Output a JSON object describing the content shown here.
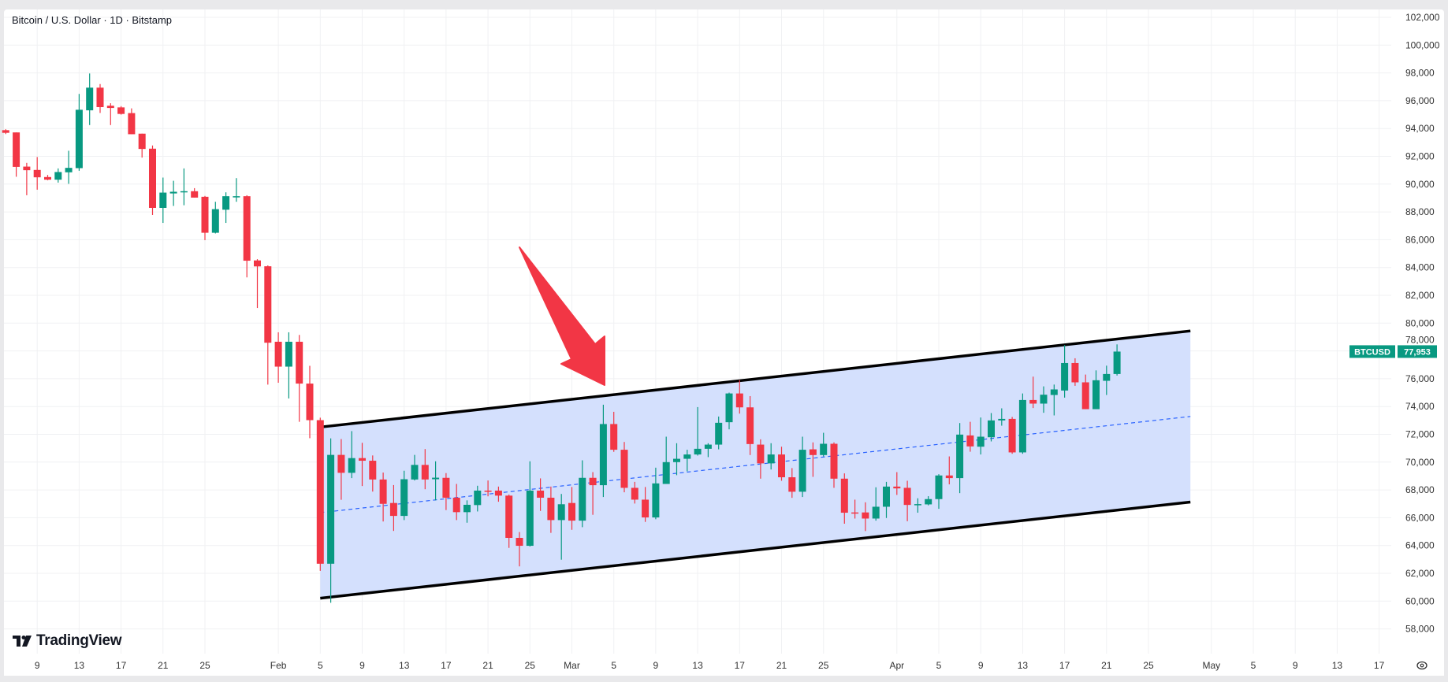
{
  "header": {
    "title": "Bitcoin / U.S. Dollar · 1D · Bitstamp"
  },
  "branding": {
    "logo_text": "TradingView"
  },
  "colors": {
    "up": "#089981",
    "down": "#F23645",
    "channel_fill": "#D2DEFD",
    "channel_line": "#000000",
    "midline": "#2962FF",
    "arrow": "#F23645"
  },
  "price_badge": {
    "symbol": "BTCUSD",
    "price": "77,953",
    "value": 77953
  },
  "chart_data": {
    "type": "candlestick",
    "title": "Bitcoin / U.S. Dollar · 1D · Bitstamp",
    "ylim": [
      57000,
      102500
    ],
    "grid": true,
    "y_ticks": [
      "102,000",
      "100,000",
      "98,000",
      "96,000",
      "94,000",
      "92,000",
      "90,000",
      "88,000",
      "86,000",
      "84,000",
      "82,000",
      "80,000",
      "78,000",
      "76,000",
      "74,000",
      "72,000",
      "70,000",
      "68,000",
      "66,000",
      "64,000",
      "62,000",
      "60,000",
      "58,000"
    ],
    "x_ticks": [
      {
        "label": "9",
        "date": "Jan 9"
      },
      {
        "label": "13",
        "date": "Jan 13"
      },
      {
        "label": "17",
        "date": "Jan 17"
      },
      {
        "label": "21",
        "date": "Jan 21"
      },
      {
        "label": "25",
        "date": "Jan 25"
      },
      {
        "label": "Feb",
        "date": "Feb 1"
      },
      {
        "label": "5",
        "date": "Feb 5"
      },
      {
        "label": "9",
        "date": "Feb 9"
      },
      {
        "label": "13",
        "date": "Feb 13"
      },
      {
        "label": "17",
        "date": "Feb 17"
      },
      {
        "label": "21",
        "date": "Feb 21"
      },
      {
        "label": "25",
        "date": "Feb 25"
      },
      {
        "label": "Mar",
        "date": "Mar 1"
      },
      {
        "label": "5",
        "date": "Mar 5"
      },
      {
        "label": "9",
        "date": "Mar 9"
      },
      {
        "label": "13",
        "date": "Mar 13"
      },
      {
        "label": "17",
        "date": "Mar 17"
      },
      {
        "label": "21",
        "date": "Mar 21"
      },
      {
        "label": "25",
        "date": "Mar 25"
      },
      {
        "label": "Apr",
        "date": "Apr 1"
      },
      {
        "label": "5",
        "date": "Apr 5"
      },
      {
        "label": "9",
        "date": "Apr 9"
      },
      {
        "label": "13",
        "date": "Apr 13"
      },
      {
        "label": "17",
        "date": "Apr 17"
      },
      {
        "label": "21",
        "date": "Apr 21"
      },
      {
        "label": "25",
        "date": "Apr 25"
      },
      {
        "label": "May",
        "date": "May 1"
      },
      {
        "label": "5",
        "date": "May 5"
      },
      {
        "label": "9",
        "date": "May 9"
      },
      {
        "label": "13",
        "date": "May 13"
      },
      {
        "label": "17",
        "date": "May 17"
      }
    ],
    "columns": [
      "date",
      "open",
      "high",
      "low",
      "close"
    ],
    "candles": [
      [
        "Jan 6",
        93880,
        93950,
        93600,
        93690
      ],
      [
        "Jan 7",
        93720,
        93720,
        90530,
        91240
      ],
      [
        "Jan 8",
        91260,
        91530,
        89200,
        91000
      ],
      [
        "Jan 9",
        91020,
        91950,
        89600,
        90490
      ],
      [
        "Jan 10",
        90510,
        90660,
        90280,
        90320
      ],
      [
        "Jan 11",
        90320,
        91130,
        90110,
        90870
      ],
      [
        "Jan 12",
        90850,
        92400,
        90020,
        91170
      ],
      [
        "Jan 13",
        91150,
        96490,
        90960,
        95350
      ],
      [
        "Jan 14",
        95310,
        97960,
        94250,
        96940
      ],
      [
        "Jan 15",
        96940,
        97200,
        95120,
        95540
      ],
      [
        "Jan 16",
        95640,
        95820,
        94250,
        95480
      ],
      [
        "Jan 17",
        95520,
        95610,
        95000,
        95050
      ],
      [
        "Jan 18",
        95110,
        95450,
        93590,
        93590
      ],
      [
        "Jan 19",
        93630,
        93630,
        91910,
        92530
      ],
      [
        "Jan 20",
        92550,
        92780,
        87780,
        88290
      ],
      [
        "Jan 21",
        88290,
        90470,
        87210,
        89390
      ],
      [
        "Jan 22",
        89330,
        90240,
        88430,
        89450
      ],
      [
        "Jan 23",
        89450,
        91130,
        88480,
        89490
      ],
      [
        "Jan 24",
        89490,
        89710,
        89030,
        89030
      ],
      [
        "Jan 25",
        89090,
        89150,
        85970,
        86500
      ],
      [
        "Jan 26",
        86500,
        88730,
        86450,
        88200
      ],
      [
        "Jan 27",
        88160,
        89410,
        87210,
        89130
      ],
      [
        "Jan 28",
        89090,
        90430,
        88730,
        89130
      ],
      [
        "Jan 29",
        89130,
        89200,
        83290,
        84490
      ],
      [
        "Jan 30",
        84510,
        84600,
        81090,
        84080
      ],
      [
        "Jan 31",
        84090,
        84150,
        75580,
        78590
      ],
      [
        "Feb 1",
        78660,
        79340,
        75710,
        76870
      ],
      [
        "Feb 2",
        76870,
        79340,
        74580,
        78660
      ],
      [
        "Feb 3",
        78660,
        79150,
        72900,
        75650
      ],
      [
        "Feb 4",
        75650,
        76930,
        71720,
        73020
      ],
      [
        "Feb 5",
        73020,
        73200,
        62180,
        62690
      ],
      [
        "Feb 6",
        62690,
        71710,
        59880,
        70520
      ],
      [
        "Feb 7",
        70520,
        71660,
        67290,
        69230
      ],
      [
        "Feb 8",
        69230,
        72230,
        68850,
        70290
      ],
      [
        "Feb 9",
        70290,
        71390,
        68280,
        70100
      ],
      [
        "Feb 10",
        70100,
        70480,
        67880,
        68750
      ],
      [
        "Feb 11",
        68750,
        69250,
        65730,
        67000
      ],
      [
        "Feb 12",
        67060,
        68350,
        65050,
        66130
      ],
      [
        "Feb 13",
        66130,
        69380,
        65830,
        68770
      ],
      [
        "Feb 14",
        68750,
        70520,
        68680,
        69800
      ],
      [
        "Feb 15",
        69800,
        70940,
        68050,
        68750
      ],
      [
        "Feb 16",
        68770,
        70060,
        67250,
        68880
      ],
      [
        "Feb 17",
        68870,
        69210,
        66550,
        67440
      ],
      [
        "Feb 18",
        67440,
        68430,
        65830,
        66400
      ],
      [
        "Feb 19",
        66400,
        67250,
        65640,
        66930
      ],
      [
        "Feb 20",
        66910,
        68300,
        66450,
        67950
      ],
      [
        "Feb 21",
        67950,
        68680,
        67540,
        67920
      ],
      [
        "Feb 22",
        67950,
        68240,
        67150,
        67590
      ],
      [
        "Feb 23",
        67590,
        67670,
        63830,
        64550
      ],
      [
        "Feb 24",
        64550,
        64970,
        62500,
        63980
      ],
      [
        "Feb 25",
        63980,
        70060,
        63930,
        67950
      ],
      [
        "Feb 26",
        67950,
        68830,
        66490,
        67440
      ],
      [
        "Feb 27",
        67440,
        68240,
        64910,
        65830
      ],
      [
        "Feb 28",
        65830,
        67710,
        62980,
        66970
      ],
      [
        "Mar 1",
        67060,
        68210,
        65130,
        65790
      ],
      [
        "Mar 2",
        65790,
        70130,
        65320,
        68870
      ],
      [
        "Mar 3",
        68870,
        69280,
        66210,
        68340
      ],
      [
        "Mar 4",
        68340,
        74130,
        67490,
        72740
      ],
      [
        "Mar 5",
        72740,
        73620,
        70740,
        70890
      ],
      [
        "Mar 6",
        70890,
        71450,
        67830,
        68150
      ],
      [
        "Mar 7",
        68150,
        68580,
        67020,
        67300
      ],
      [
        "Mar 8",
        67300,
        68210,
        65700,
        66020
      ],
      [
        "Mar 9",
        66020,
        69600,
        65890,
        68470
      ],
      [
        "Mar 10",
        68430,
        71830,
        68430,
        70000
      ],
      [
        "Mar 11",
        70000,
        71360,
        69060,
        70240
      ],
      [
        "Mar 12",
        70240,
        70890,
        69340,
        70550
      ],
      [
        "Mar 13",
        70550,
        73960,
        70470,
        70960
      ],
      [
        "Mar 14",
        70960,
        71360,
        70360,
        71260
      ],
      [
        "Mar 15",
        71260,
        73280,
        70920,
        72830
      ],
      [
        "Mar 16",
        72870,
        75000,
        72360,
        74940
      ],
      [
        "Mar 17",
        74940,
        75900,
        73490,
        73940
      ],
      [
        "Mar 18",
        73940,
        74750,
        70510,
        71300
      ],
      [
        "Mar 19",
        71260,
        71640,
        68810,
        69910
      ],
      [
        "Mar 20",
        69910,
        71360,
        69470,
        70550
      ],
      [
        "Mar 21",
        70550,
        71110,
        68660,
        68910
      ],
      [
        "Mar 22",
        68910,
        69570,
        67430,
        67870
      ],
      [
        "Mar 23",
        67870,
        71830,
        67490,
        70890
      ],
      [
        "Mar 24",
        70920,
        71420,
        68940,
        70510
      ],
      [
        "Mar 25",
        70510,
        72110,
        70410,
        71320
      ],
      [
        "Mar 26",
        71320,
        71420,
        68150,
        68810
      ],
      [
        "Mar 27",
        68810,
        69190,
        65570,
        66360
      ],
      [
        "Mar 28",
        66380,
        67300,
        65940,
        66340
      ],
      [
        "Mar 29",
        66380,
        67110,
        65040,
        65940
      ],
      [
        "Mar 30",
        65940,
        68190,
        65790,
        66790
      ],
      [
        "Mar 31",
        66790,
        68580,
        65980,
        68240
      ],
      [
        "Apr 1",
        68240,
        69280,
        67640,
        68110
      ],
      [
        "Apr 2",
        68150,
        68660,
        65750,
        66920
      ],
      [
        "Apr 3",
        66920,
        67400,
        66360,
        66980
      ],
      [
        "Apr 4",
        66960,
        67550,
        66890,
        67340
      ],
      [
        "Apr 5",
        67340,
        69130,
        66640,
        69040
      ],
      [
        "Apr 6",
        69040,
        70410,
        68400,
        68850
      ],
      [
        "Apr 7",
        68850,
        72810,
        67770,
        71980
      ],
      [
        "Apr 8",
        71920,
        72900,
        70750,
        71130
      ],
      [
        "Apr 9",
        71110,
        73210,
        70550,
        71830
      ],
      [
        "Apr 10",
        71790,
        73530,
        71490,
        73000
      ],
      [
        "Apr 11",
        73000,
        73870,
        72620,
        73110
      ],
      [
        "Apr 12",
        73110,
        73250,
        70600,
        70700
      ],
      [
        "Apr 13",
        70700,
        74940,
        70600,
        74470
      ],
      [
        "Apr 14",
        74470,
        76150,
        73890,
        74210
      ],
      [
        "Apr 15",
        74210,
        75450,
        73550,
        74850
      ],
      [
        "Apr 16",
        74830,
        75580,
        73360,
        75230
      ],
      [
        "Apr 17",
        75150,
        78420,
        74640,
        77130
      ],
      [
        "Apr 18",
        77130,
        77470,
        75490,
        75740
      ],
      [
        "Apr 19",
        75740,
        76300,
        73810,
        73810
      ],
      [
        "Apr 20",
        73810,
        76600,
        73810,
        75890
      ],
      [
        "Apr 21",
        75850,
        76940,
        74830,
        76340
      ],
      [
        "Apr 22",
        76340,
        78470,
        76230,
        77953
      ]
    ],
    "annotations": {
      "channel": {
        "upper": [
          {
            "date": "Feb 5",
            "price": 72520
          },
          {
            "date": "Apr 29",
            "price": 79440
          }
        ],
        "lower": [
          {
            "date": "Feb 5",
            "price": 60210
          },
          {
            "date": "Apr 29",
            "price": 67130
          }
        ]
      },
      "arrow": {
        "direction": "down-right",
        "points_to": "channel upper line near Mar 4"
      }
    }
  }
}
